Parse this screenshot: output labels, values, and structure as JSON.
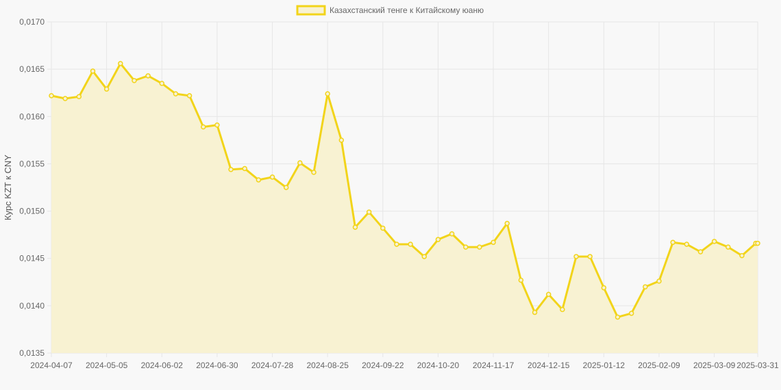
{
  "chart_data": {
    "type": "area",
    "title": "",
    "xlabel": "",
    "ylabel": "Курс KZT к CNY",
    "legend": "top-center",
    "grid": true,
    "ylim": [
      0.0135,
      0.017
    ],
    "y_ticks": [
      "0,0135",
      "0,0140",
      "0,0145",
      "0,0150",
      "0,0155",
      "0,0160",
      "0,0165",
      "0,0170"
    ],
    "x_ticks": [
      "2024-04-07",
      "2024-05-05",
      "2024-06-02",
      "2024-06-30",
      "2024-07-28",
      "2024-08-25",
      "2024-09-22",
      "2024-10-20",
      "2024-11-17",
      "2024-12-15",
      "2025-01-12",
      "2025-02-09",
      "2025-03-09",
      "2025-03-31"
    ],
    "colors": {
      "line": "#f2d41a",
      "fill": "#f8f2d2",
      "grid": "#e6e6e6",
      "background": "#f8f8f8"
    },
    "series": [
      {
        "name": "Казахстанский тенге к Китайскому юаню",
        "x": [
          "2024-04-07",
          "2024-04-14",
          "2024-04-21",
          "2024-04-28",
          "2024-05-05",
          "2024-05-12",
          "2024-05-19",
          "2024-05-26",
          "2024-06-02",
          "2024-06-09",
          "2024-06-16",
          "2024-06-23",
          "2024-06-30",
          "2024-07-07",
          "2024-07-14",
          "2024-07-21",
          "2024-07-28",
          "2024-08-04",
          "2024-08-11",
          "2024-08-18",
          "2024-08-25",
          "2024-09-01",
          "2024-09-08",
          "2024-09-15",
          "2024-09-22",
          "2024-09-29",
          "2024-10-06",
          "2024-10-13",
          "2024-10-20",
          "2024-10-27",
          "2024-11-03",
          "2024-11-10",
          "2024-11-17",
          "2024-11-24",
          "2024-12-01",
          "2024-12-08",
          "2024-12-15",
          "2024-12-22",
          "2024-12-29",
          "2025-01-05",
          "2025-01-12",
          "2025-01-19",
          "2025-01-26",
          "2025-02-02",
          "2025-02-09",
          "2025-02-16",
          "2025-02-23",
          "2025-03-02",
          "2025-03-09",
          "2025-03-16",
          "2025-03-23",
          "2025-03-30",
          "2025-03-31"
        ],
        "values": [
          0.01622,
          0.01619,
          0.01621,
          0.01648,
          0.01629,
          0.01656,
          0.01638,
          0.01643,
          0.01635,
          0.01624,
          0.01622,
          0.01589,
          0.01591,
          0.01544,
          0.01545,
          0.01533,
          0.01536,
          0.01525,
          0.01551,
          0.01541,
          0.01624,
          0.01575,
          0.01483,
          0.01499,
          0.01482,
          0.01465,
          0.01465,
          0.01452,
          0.0147,
          0.01476,
          0.01462,
          0.01462,
          0.01467,
          0.01487,
          0.01427,
          0.01393,
          0.01412,
          0.01396,
          0.01452,
          0.01452,
          0.01419,
          0.01388,
          0.01392,
          0.0142,
          0.01426,
          0.01467,
          0.01465,
          0.01457,
          0.01468,
          0.01462,
          0.01453,
          0.01466,
          0.01466
        ]
      }
    ]
  }
}
